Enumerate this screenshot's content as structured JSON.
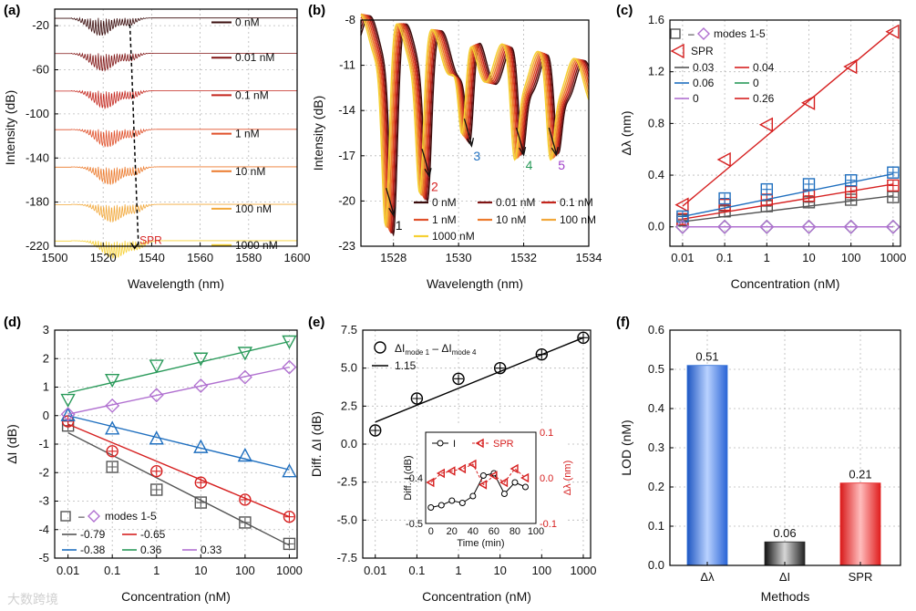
{
  "chart_data": [
    {
      "panel": "(a)",
      "type": "line",
      "xlabel": "Wavelength (nm)",
      "ylabel": "Intensity (dB)",
      "xlim": [
        1500,
        1600
      ],
      "ylim": [
        -220,
        -5
      ],
      "xticks": [
        "1500",
        "1520",
        "1540",
        "1560",
        "1580",
        "1600"
      ],
      "yticks": [
        "-20",
        "-60",
        "-100",
        "-140",
        "-180",
        "-220"
      ],
      "series": [
        {
          "name": "0 nM",
          "color": "#3a0c0c",
          "offset": -13
        },
        {
          "name": "0.01 nM",
          "color": "#801515",
          "offset": -45
        },
        {
          "name": "0.1 nM",
          "color": "#c4261d",
          "offset": -79
        },
        {
          "name": "1 nM",
          "color": "#e0502a",
          "offset": -114
        },
        {
          "name": "10 nM",
          "color": "#ec7a2c",
          "offset": -148
        },
        {
          "name": "100 nM",
          "color": "#f2a83a",
          "offset": -182
        },
        {
          "name": "1000 nM",
          "color": "#f6d033",
          "offset": -215
        }
      ],
      "annotation": "SPR"
    },
    {
      "panel": "(b)",
      "type": "line",
      "xlabel": "Wavelength (nm)",
      "ylabel": "Intensity (dB)",
      "xlim": [
        1527,
        1534
      ],
      "ylim": [
        -23,
        -8
      ],
      "xticks": [
        "1528",
        "1530",
        "1532",
        "1534"
      ],
      "yticks": [
        "-8",
        "-11",
        "-14",
        "-17",
        "-20",
        "-23"
      ],
      "series": [
        {
          "name": "0 nM",
          "color": "#3a0c0c"
        },
        {
          "name": "0.01 nM",
          "color": "#801515"
        },
        {
          "name": "0.1 nM",
          "color": "#c4261d"
        },
        {
          "name": "1 nM",
          "color": "#e0502a"
        },
        {
          "name": "10 nM",
          "color": "#ec7a2c"
        },
        {
          "name": "100 nM",
          "color": "#f2a83a"
        },
        {
          "name": "1000 nM",
          "color": "#f6d033"
        }
      ],
      "mode_labels": [
        {
          "label": "1",
          "color": "#111111",
          "x": 1528.0,
          "y": -21.2
        },
        {
          "label": "2",
          "color": "#d62020",
          "x": 1529.1,
          "y": -18.6
        },
        {
          "label": "3",
          "color": "#1f6fbf",
          "x": 1530.4,
          "y": -16.6
        },
        {
          "label": "4",
          "color": "#2a9a5a",
          "x": 1532.0,
          "y": -17.2
        },
        {
          "label": "5",
          "color": "#a040c8",
          "x": 1533.0,
          "y": -17.2
        }
      ]
    },
    {
      "panel": "(c)",
      "type": "scatter",
      "xlabel": "Concentration (nM)",
      "ylabel": "Δλ (nm)",
      "xscale": "log",
      "xlim": [
        0.005,
        1500
      ],
      "ylim": [
        -0.15,
        1.6
      ],
      "xticks": [
        "0.01",
        "0.1",
        "1",
        "10",
        "100",
        "1000"
      ],
      "yticks": [
        "0.0",
        "0.4",
        "0.8",
        "1.2",
        "1.6"
      ],
      "x": [
        0.01,
        0.1,
        1,
        10,
        100,
        1000
      ],
      "series": [
        {
          "name": "SPR",
          "color": "#d62020",
          "marker": "tri-left",
          "values": [
            0.17,
            0.52,
            0.79,
            0.96,
            1.24,
            1.51
          ],
          "fit": [
            0.16,
            1.52
          ]
        },
        {
          "name": "mode 1",
          "color": "#555555",
          "marker": "square",
          "values": [
            0.05,
            0.12,
            0.16,
            0.19,
            0.21,
            0.23
          ],
          "fit": [
            0.04,
            0.24
          ]
        },
        {
          "name": "mode 2",
          "color": "#d62020",
          "marker": "square",
          "values": [
            0.06,
            0.17,
            0.21,
            0.24,
            0.27,
            0.32
          ],
          "fit": [
            0.06,
            0.33
          ]
        },
        {
          "name": "mode 3",
          "color": "#1f6fbf",
          "marker": "square",
          "values": [
            0.08,
            0.22,
            0.29,
            0.33,
            0.36,
            0.42
          ],
          "fit": [
            0.08,
            0.41
          ]
        },
        {
          "name": "mode 4",
          "color": "#2a9a5a",
          "marker": "diamond",
          "values": [
            0.0,
            0.0,
            0.0,
            0.0,
            0.0,
            0.0
          ],
          "fit": [
            0.0,
            0.0
          ]
        },
        {
          "name": "mode 5",
          "color": "#b070d0",
          "marker": "diamond",
          "values": [
            0.0,
            0.0,
            0.0,
            0.0,
            0.0,
            0.0
          ],
          "fit": [
            0.0,
            0.0
          ]
        }
      ],
      "legend": {
        "markers_label": "modes 1-5",
        "dash": "–",
        "spr": "SPR",
        "slopes": [
          {
            "text": "0.03",
            "color": "#555555"
          },
          {
            "text": "0.04",
            "color": "#d62020"
          },
          {
            "text": "0.06",
            "color": "#1f6fbf"
          },
          {
            "text": "0",
            "color": "#2a9a5a"
          },
          {
            "text": "0",
            "color": "#b070d0"
          },
          {
            "text": "0.26",
            "color": "#d62020"
          }
        ]
      }
    },
    {
      "panel": "(d)",
      "type": "scatter",
      "xlabel": "Concentration (nM)",
      "ylabel": "ΔI (dB)",
      "xscale": "log",
      "xlim": [
        0.005,
        1500
      ],
      "ylim": [
        -5,
        3
      ],
      "xticks": [
        "0.01",
        "0.1",
        "1",
        "10",
        "100",
        "1000"
      ],
      "yticks": [
        "3",
        "2",
        "1",
        "0",
        "-1",
        "-2",
        "-3",
        "-4",
        "-5"
      ],
      "x": [
        0.01,
        0.1,
        1,
        10,
        100,
        1000
      ],
      "series": [
        {
          "name": "mode 1",
          "color": "#555555",
          "marker": "square",
          "values": [
            -0.35,
            -1.8,
            -2.6,
            -3.05,
            -3.75,
            -4.5
          ],
          "fit": [
            -0.6,
            -4.55
          ]
        },
        {
          "name": "mode 2",
          "color": "#d62020",
          "marker": "circle",
          "values": [
            -0.2,
            -1.25,
            -1.95,
            -2.35,
            -2.95,
            -3.55
          ],
          "fit": [
            -0.3,
            -3.55
          ]
        },
        {
          "name": "mode 3",
          "color": "#1f6fbf",
          "marker": "tri-up",
          "values": [
            0.02,
            -0.45,
            -0.8,
            -1.1,
            -1.4,
            -1.95
          ],
          "fit": [
            0.0,
            -1.9
          ]
        },
        {
          "name": "mode 4",
          "color": "#2a9a5a",
          "marker": "tri-down",
          "values": [
            0.55,
            1.25,
            1.75,
            2.0,
            2.2,
            2.6
          ],
          "fit": [
            0.8,
            2.6
          ]
        },
        {
          "name": "mode 5",
          "color": "#b070d0",
          "marker": "diamond",
          "values": [
            0.05,
            0.35,
            0.72,
            1.05,
            1.35,
            1.7
          ],
          "fit": [
            0.05,
            1.7
          ]
        }
      ],
      "legend": {
        "markers_label": "modes 1-5",
        "dash": "–",
        "slopes": [
          {
            "text": "-0.79",
            "color": "#555555"
          },
          {
            "text": "-0.65",
            "color": "#d62020"
          },
          {
            "text": "-0.38",
            "color": "#1f6fbf"
          },
          {
            "text": "0.36",
            "color": "#2a9a5a"
          },
          {
            "text": "0.33",
            "color": "#b070d0"
          }
        ]
      }
    },
    {
      "panel": "(e)",
      "type": "scatter",
      "xlabel": "Concentration (nM)",
      "ylabel": "Diff. ΔI (dB)",
      "xscale": "log",
      "xlim": [
        0.005,
        1500
      ],
      "ylim": [
        -7.5,
        7.5
      ],
      "xticks": [
        "0.01",
        "0.1",
        "1",
        "10",
        "100",
        "1000"
      ],
      "yticks": [
        "7.5",
        "5.0",
        "2.5",
        "0.0",
        "-2.5",
        "-5.0",
        "-7.5"
      ],
      "x": [
        0.01,
        0.1,
        1,
        10,
        100,
        1000
      ],
      "values": [
        0.9,
        3.0,
        4.3,
        5.0,
        5.9,
        7.0
      ],
      "fit": [
        1.45,
        7.0
      ],
      "legend": {
        "marker_label": "ΔI",
        "sub1": "mode 1",
        "minus": " – ΔI",
        "sub4": "mode 4",
        "line_label": "1.15"
      },
      "inset": {
        "xlabel": "Time (min)",
        "ylabel_left": "Diff. I (dB)",
        "ylabel_right": "Δλ (nm)",
        "xlim": [
          -5,
          100
        ],
        "ylim_left": [
          -0.5,
          -0.3
        ],
        "ylim_right": [
          -0.1,
          0.1
        ],
        "xticks": [
          "0",
          "20",
          "40",
          "60",
          "80",
          "100"
        ],
        "yticks_left": [
          "-0.5",
          "-0.4"
        ],
        "yticks_right": [
          "0.1",
          "0.0",
          "-0.1"
        ],
        "legend_I": "I",
        "legend_SPR": "SPR",
        "time": [
          0,
          10,
          20,
          30,
          40,
          50,
          60,
          70,
          80,
          90
        ],
        "I_values": [
          -0.465,
          -0.46,
          -0.45,
          -0.455,
          -0.44,
          -0.395,
          -0.39,
          -0.435,
          -0.41,
          -0.42
        ],
        "SPR_values": [
          -0.01,
          0.01,
          0.015,
          0.02,
          0.03,
          -0.015,
          0.005,
          -0.01,
          0.02,
          0.0
        ]
      }
    },
    {
      "panel": "(f)",
      "type": "bar",
      "xlabel": "Methods",
      "ylabel": "LOD (nM)",
      "ylim": [
        0,
        0.6
      ],
      "yticks": [
        "0.0",
        "0.1",
        "0.2",
        "0.3",
        "0.4",
        "0.5",
        "0.6"
      ],
      "categories": [
        "Δλ",
        "ΔI",
        "SPR"
      ],
      "values": [
        0.51,
        0.06,
        0.21
      ],
      "value_labels": [
        "0.51",
        "0.06",
        "0.21"
      ],
      "colors": [
        "#2f6fd6",
        "#2a2a2a",
        "#e52121"
      ]
    }
  ],
  "panels": {
    "a": {
      "label": "(a)"
    },
    "b": {
      "label": "(b)"
    },
    "c": {
      "label": "(c)"
    },
    "d": {
      "label": "(d)"
    },
    "e": {
      "label": "(e)"
    },
    "f": {
      "label": "(f)"
    }
  },
  "watermark": "大数跨境"
}
